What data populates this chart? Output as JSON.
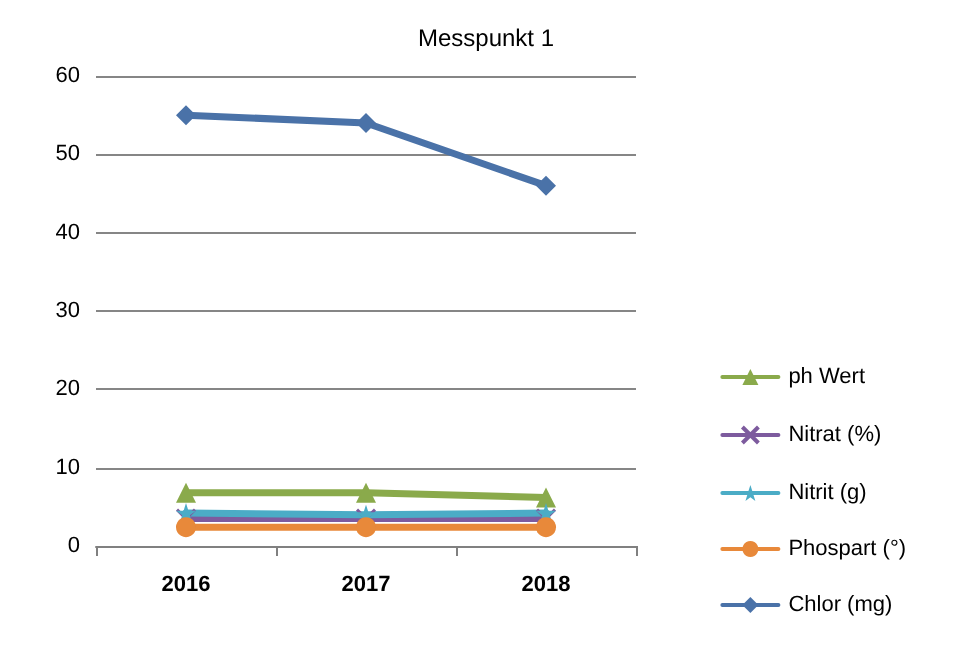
{
  "chart_data": {
    "type": "line",
    "title": "Messpunkt 1",
    "categories": [
      "2016",
      "2017",
      "2018"
    ],
    "series": [
      {
        "name": "ph Wert",
        "color": "#8aaa4b",
        "marker": "triangle",
        "values": [
          6.8,
          6.8,
          6.2
        ]
      },
      {
        "name": "Nitrat (%)",
        "color": "#7d5b9e",
        "marker": "cross",
        "values": [
          3.5,
          3.5,
          3.5
        ]
      },
      {
        "name": "Nitrit (g)",
        "color": "#4bacc6",
        "marker": "star",
        "values": [
          4.2,
          4.0,
          4.2
        ]
      },
      {
        "name": "Phospart (°)",
        "color": "#e8893a",
        "marker": "circle",
        "values": [
          2.4,
          2.4,
          2.4
        ]
      },
      {
        "name": "Chlor (mg)",
        "color": "#4a72a8",
        "marker": "diamond",
        "values": [
          55,
          54,
          46
        ]
      }
    ],
    "ylim": [
      0,
      60
    ],
    "yticks": [
      0,
      10,
      20,
      30,
      40,
      50,
      60
    ],
    "grid": "y",
    "legend": "right",
    "line_style": "solid"
  }
}
